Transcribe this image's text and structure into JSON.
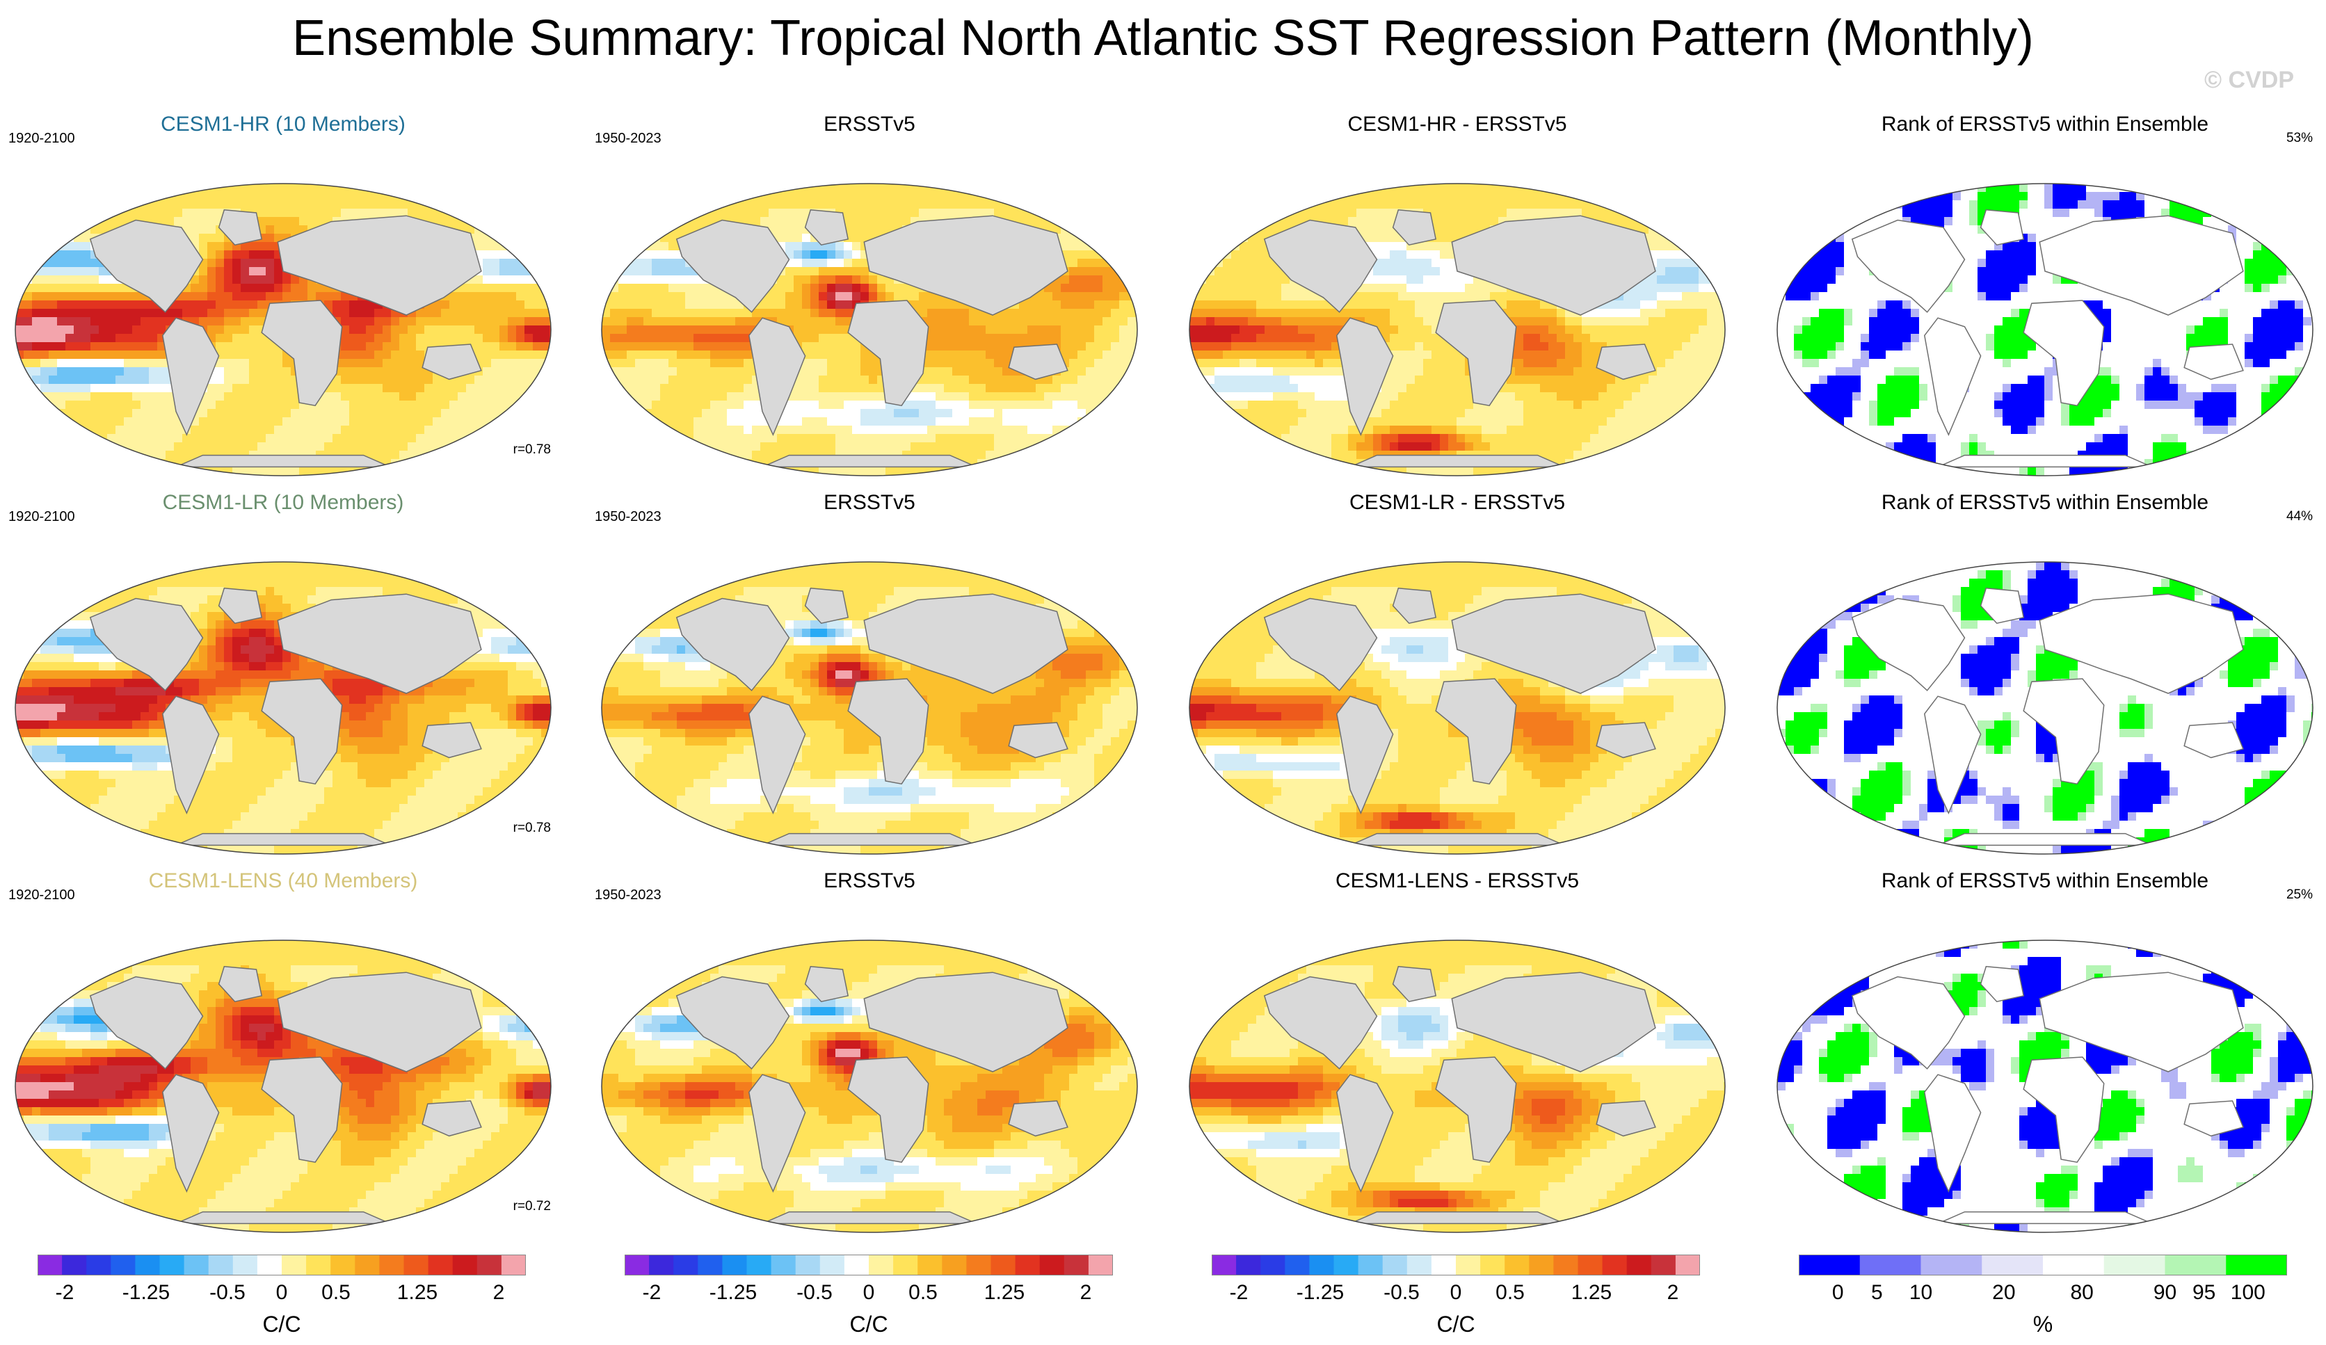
{
  "title": "Ensemble Summary: Tropical North Atlantic SST Regression Pattern (Monthly)",
  "watermark": "© CVDP",
  "chart_data": {
    "type": "heatmap",
    "projection": "Robinson global map",
    "rows": [
      {
        "ensemble": {
          "title": "CESM1-HR (10 Members)",
          "title_color": "#1f6f96",
          "period": "1920-2100",
          "r": "r=0.78"
        },
        "obs": {
          "title": "ERSSTv5",
          "period": "1950-2023"
        },
        "diff": {
          "title": "CESM1-HR - ERSSTv5"
        },
        "rank": {
          "title": "Rank of ERSSTv5 within Ensemble",
          "percent": "53%"
        }
      },
      {
        "ensemble": {
          "title": "CESM1-LR (10 Members)",
          "title_color": "#6a8f6e",
          "period": "1920-2100",
          "r": "r=0.78"
        },
        "obs": {
          "title": "ERSSTv5",
          "period": "1950-2023"
        },
        "diff": {
          "title": "CESM1-LR - ERSSTv5"
        },
        "rank": {
          "title": "Rank of ERSSTv5 within Ensemble",
          "percent": "44%"
        }
      },
      {
        "ensemble": {
          "title": "CESM1-LENS (40 Members)",
          "title_color": "#d4c47a",
          "period": "1920-2100",
          "r": "r=0.72"
        },
        "obs": {
          "title": "ERSSTv5",
          "period": "1950-2023"
        },
        "diff": {
          "title": "CESM1-LENS - ERSSTv5"
        },
        "rank": {
          "title": "Rank of ERSSTv5 within Ensemble",
          "percent": "25%"
        }
      }
    ],
    "colorbar_regression": {
      "units": "C/C",
      "tick_labels": [
        "-2",
        "-1.25",
        "-0.5",
        "0",
        "0.5",
        "1.25",
        "2"
      ],
      "colors": [
        "#8a2be2",
        "#3c28dc",
        "#2a3ce6",
        "#2060ee",
        "#1a8ff2",
        "#28aaf5",
        "#6cc2f5",
        "#a8d8f5",
        "#d2ebf7",
        "#ffffff",
        "#fff3a0",
        "#ffe35a",
        "#fbc02d",
        "#f7a020",
        "#f47c1e",
        "#ee5a1c",
        "#e23320",
        "#cc1b1e",
        "#c8323a",
        "#f3a4ac"
      ],
      "range": [
        -2.25,
        2.25
      ]
    },
    "colorbar_rank": {
      "units": "%",
      "tick_labels": [
        "0",
        "5",
        "10",
        "20",
        "80",
        "90",
        "95",
        "100"
      ],
      "colors": [
        "#0000ff",
        "#6f6ff7",
        "#b4b4f5",
        "#e4e4f8",
        "#ffffff",
        "#e4f8e4",
        "#b4f5b4",
        "#00ff00"
      ]
    }
  }
}
